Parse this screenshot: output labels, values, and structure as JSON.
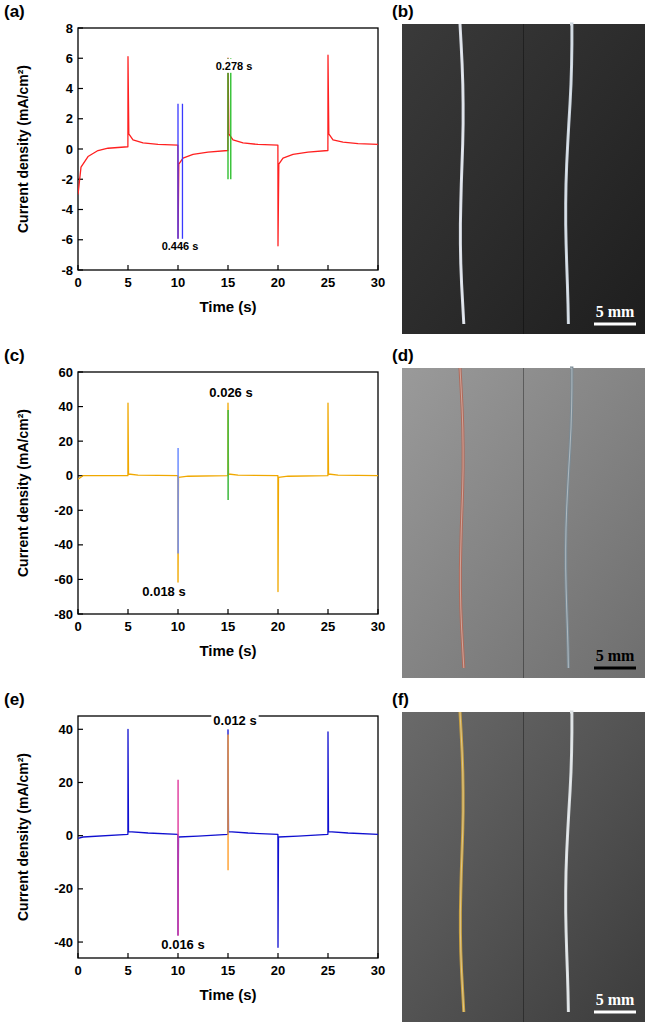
{
  "chart_data": [
    {
      "type": "line",
      "panel": "(a)",
      "x_label": "Time (s)",
      "y_label": "Current density (mA/cm²)",
      "xlim": [
        0,
        30
      ],
      "xticks": [
        0,
        5,
        10,
        15,
        20,
        25,
        30
      ],
      "ylim": [
        -8,
        8
      ],
      "yticks": [
        -8,
        -6,
        -4,
        -2,
        0,
        2,
        4,
        6,
        8
      ],
      "series": [
        {
          "color": "#ff2020",
          "x": [
            0,
            0.3,
            1,
            2,
            3,
            4.99,
            5,
            5.08,
            5.5,
            6.5,
            8,
            9.99,
            10,
            10.08,
            10.5,
            11.5,
            13,
            14.99,
            15,
            15.08,
            15.5,
            16.5,
            18,
            19.99,
            20,
            20.08,
            20.5,
            21.5,
            23,
            24.99,
            25,
            25.08,
            25.5,
            26.5,
            28,
            30
          ],
          "values": [
            -3.0,
            -1.2,
            -0.5,
            -0.1,
            0.05,
            0.15,
            6.1,
            1.0,
            0.6,
            0.4,
            0.3,
            0.25,
            -6.4,
            -1.0,
            -0.6,
            -0.35,
            -0.2,
            -0.1,
            6.0,
            1.0,
            0.6,
            0.4,
            0.3,
            0.25,
            -6.4,
            -1.0,
            -0.6,
            -0.35,
            -0.2,
            -0.1,
            6.2,
            1.0,
            0.6,
            0.45,
            0.35,
            0.3
          ]
        },
        {
          "color": "#3a3aff",
          "x": [
            10,
            10,
            10.2,
            10.446,
            10.446
          ],
          "values": [
            -6.2,
            3,
            null,
            3,
            -6.2
          ]
        },
        {
          "color": "#22bb22",
          "x": [
            15,
            15,
            15.1,
            15.278,
            15.278
          ],
          "values": [
            -2,
            6,
            null,
            6,
            -2
          ]
        }
      ],
      "annotations": [
        {
          "text": "0.446 s",
          "x": 10.2,
          "y": -6.4
        },
        {
          "text": "0.278 s",
          "x": 15.6,
          "y": 5.5
        }
      ]
    },
    {
      "type": "line",
      "panel": "(c)",
      "x_label": "Time (s)",
      "y_label": "Current density (mA/cm²)",
      "xlim": [
        0,
        30
      ],
      "xticks": [
        0,
        5,
        10,
        15,
        20,
        25,
        30
      ],
      "ylim": [
        -80,
        60
      ],
      "yticks": [
        -80,
        -60,
        -40,
        -20,
        0,
        20,
        40,
        60
      ],
      "series": [
        {
          "color": "#f0a800",
          "x": [
            0,
            0.5,
            4.99,
            5,
            5.05,
            6,
            9.99,
            10,
            10.05,
            11,
            14.99,
            15,
            15.05,
            16,
            19.99,
            20,
            20.05,
            21,
            24.99,
            25,
            25.05,
            26,
            30
          ],
          "values": [
            -2,
            0,
            0,
            42,
            1,
            0.3,
            0,
            -67,
            -1,
            -0.3,
            0,
            42,
            1,
            0.3,
            0,
            -67,
            -1,
            -0.3,
            0,
            42,
            1,
            0.3,
            0
          ]
        },
        {
          "color": "#6b8cff",
          "x": [
            10,
            10,
            10.009,
            10.018,
            10.018
          ],
          "values": [
            16,
            -45,
            null,
            -45,
            16
          ]
        },
        {
          "color": "#44bb44",
          "x": [
            15,
            15,
            15.013,
            15.026,
            15.026
          ],
          "values": [
            -14,
            38,
            null,
            38,
            -14
          ]
        }
      ],
      "annotations": [
        {
          "text": "0.026 s",
          "x": 15.3,
          "y": 48
        },
        {
          "text": "0.018 s",
          "x": 8.6,
          "y": -67
        }
      ]
    },
    {
      "type": "line",
      "panel": "(e)",
      "x_label": "Time (s)",
      "y_label": "Current density (mA/cm²)",
      "xlim": [
        0,
        30
      ],
      "xticks": [
        0,
        5,
        10,
        15,
        20,
        25,
        30
      ],
      "ylim": [
        -46,
        45
      ],
      "yticks": [
        -40,
        -20,
        0,
        20,
        40
      ],
      "series": [
        {
          "color": "#1010d0",
          "x": [
            0,
            0.5,
            4.99,
            5,
            5.05,
            7,
            9.99,
            10,
            10.05,
            12,
            14.99,
            15,
            15.05,
            17,
            19.99,
            20,
            20.05,
            22,
            24.99,
            25,
            25.05,
            27,
            30
          ],
          "values": [
            -1,
            -0.5,
            0.5,
            40,
            1.5,
            1,
            0.5,
            -40,
            -0.5,
            -0.2,
            0.5,
            40,
            1.5,
            1,
            0.5,
            -42,
            -0.5,
            -0.2,
            0.5,
            39,
            1.5,
            1,
            0.5
          ]
        },
        {
          "color": "#e040a0",
          "x": [
            10,
            10,
            10.008,
            10.016,
            10.016
          ],
          "values": [
            21,
            -40,
            null,
            -40,
            21
          ]
        },
        {
          "color": "#ffa030",
          "x": [
            15,
            15,
            15.006,
            15.012,
            15.012
          ],
          "values": [
            -13,
            38,
            null,
            38,
            -13
          ]
        }
      ],
      "annotations": [
        {
          "text": "0.012 s",
          "x": 15.7,
          "y": 43
        },
        {
          "text": "0.016 s",
          "x": 10.5,
          "y": -41
        }
      ]
    }
  ],
  "photos": [
    {
      "panel": "(b)",
      "scale_bar": "5 mm"
    },
    {
      "panel": "(d)",
      "scale_bar": "5 mm"
    },
    {
      "panel": "(f)",
      "scale_bar": "5 mm"
    }
  ]
}
